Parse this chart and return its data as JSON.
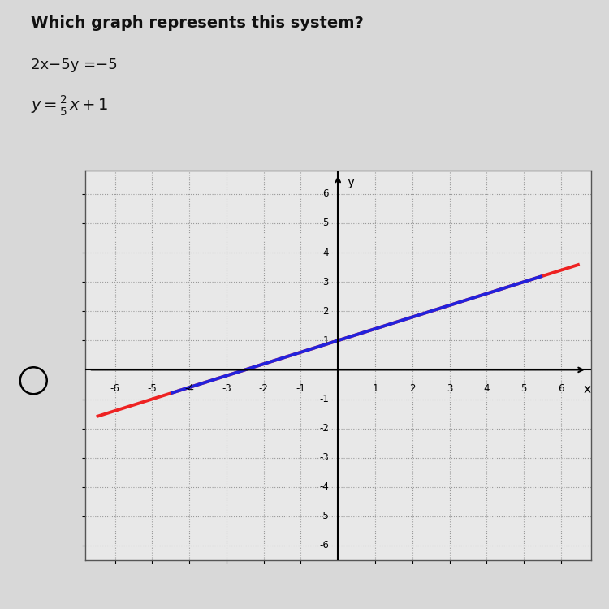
{
  "title": "Which graph represents this system?",
  "eq1": "2x−5y =−5",
  "xlim": [
    -6.8,
    6.8
  ],
  "ylim": [
    -6.5,
    6.8
  ],
  "xticks": [
    -6,
    -5,
    -4,
    -3,
    -2,
    -1,
    1,
    2,
    3,
    4,
    5,
    6
  ],
  "yticks": [
    -6,
    -5,
    -4,
    -3,
    -2,
    -1,
    1,
    2,
    3,
    4,
    5,
    6
  ],
  "grid_color": "#999999",
  "line_blue_color": "#2222dd",
  "line_red_color": "#ee2222",
  "slope": 0.4,
  "intercept": 1.0,
  "blue_x_start": -4.5,
  "blue_x_end": 5.5,
  "red_x_start": -6.5,
  "red_x_end": 6.5,
  "bg_color": "#d8d8d8",
  "plot_bg_color": "#e8e8e8",
  "axis_color": "#000000",
  "text_color": "#111111",
  "fig_width": 7.5,
  "fig_height": 7.5,
  "dpi": 100
}
